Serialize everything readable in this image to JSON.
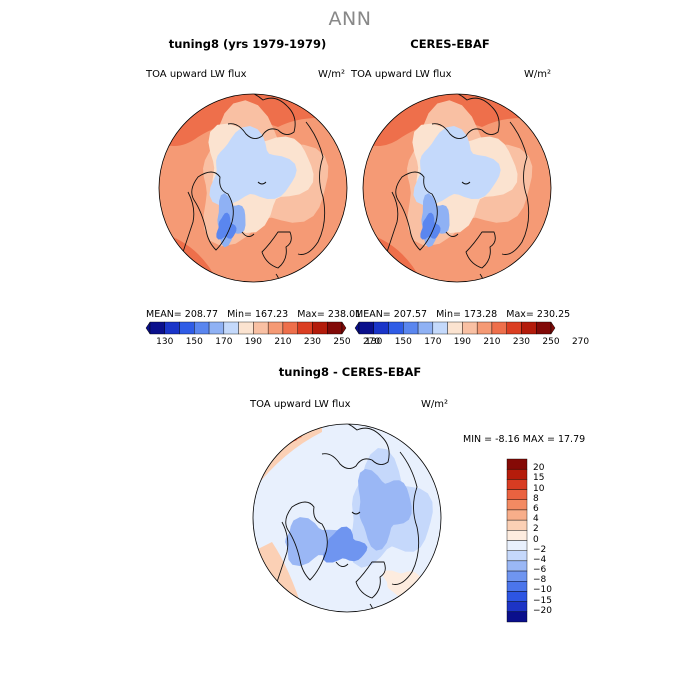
{
  "figure": {
    "title": "ANN"
  },
  "colors": {
    "abs_scale": [
      "#0a0f8c",
      "#1a35c9",
      "#2f5ce6",
      "#5a86ef",
      "#8fb1f4",
      "#c4d9fb",
      "#fbe3d0",
      "#f9c0a3",
      "#f59a75",
      "#ee6f4b",
      "#db3e22",
      "#b31b0b",
      "#820a08"
    ],
    "diff_scale": [
      "#0a0f8c",
      "#1d34c5",
      "#2d55e3",
      "#4b75eb",
      "#6f95f0",
      "#9ab7f5",
      "#c5d8fb",
      "#e8f0fd",
      "#fdecdf",
      "#fbd0b5",
      "#f8ae8a",
      "#f38a62",
      "#ea6240",
      "#d83c22",
      "#b51c0b",
      "#850a06"
    ]
  },
  "top_left": {
    "title": "tuning8 (yrs 1979-1979)",
    "variable": "TOA upward LW flux",
    "units": "W/m²",
    "mean_label": "MEAN=",
    "mean": "208.77",
    "min_label": "Min=",
    "min": "167.23",
    "max_label": "Max=",
    "max": "238.01"
  },
  "top_right": {
    "title": "CERES-EBAF",
    "variable": "TOA upward LW flux",
    "units": "W/m²",
    "mean_label": "MEAN=",
    "mean": "207.57",
    "min_label": "Min=",
    "min": "173.28",
    "max_label": "Max=",
    "max": "230.25"
  },
  "bottom": {
    "title": "tuning8 - CERES-EBAF",
    "variable": "TOA upward LW flux",
    "units": "W/m²",
    "min_label": "MIN =",
    "min": "-8.16",
    "max_label": "MAX =",
    "max": "17.79"
  },
  "chart_data": [
    {
      "type": "heatmap",
      "title": "tuning8 (yrs 1979-1979)",
      "projection": "north polar stereographic",
      "variable": "TOA upward LW flux",
      "units": "W/m²",
      "mean": 208.77,
      "min": 167.23,
      "max": 238.01,
      "colorbar_levels": [
        130,
        140,
        150,
        160,
        170,
        180,
        190,
        200,
        210,
        220,
        230,
        240,
        250,
        260,
        270
      ],
      "colorbar_ticks": [
        "130",
        "150",
        "170",
        "190",
        "210",
        "230",
        "250",
        "270"
      ]
    },
    {
      "type": "heatmap",
      "title": "CERES-EBAF",
      "projection": "north polar stereographic",
      "variable": "TOA upward LW flux",
      "units": "W/m²",
      "mean": 207.57,
      "min": 173.28,
      "max": 230.25,
      "colorbar_levels": [
        130,
        140,
        150,
        160,
        170,
        180,
        190,
        200,
        210,
        220,
        230,
        240,
        250,
        260,
        270
      ],
      "colorbar_ticks": [
        "130",
        "150",
        "170",
        "190",
        "210",
        "230",
        "250",
        "270"
      ]
    },
    {
      "type": "heatmap",
      "title": "tuning8 - CERES-EBAF",
      "projection": "north polar stereographic",
      "variable": "TOA upward LW flux",
      "units": "W/m²",
      "min": -8.16,
      "max": 17.79,
      "colorbar_levels": [
        -20,
        -15,
        -10,
        -8,
        -6,
        -4,
        -2,
        0,
        2,
        4,
        6,
        8,
        10,
        15,
        20
      ],
      "colorbar_labels_top_to_bottom": [
        "20",
        "15",
        "10",
        "8",
        "6",
        "4",
        "2",
        "0",
        "−2",
        "−4",
        "−6",
        "−8",
        "−10",
        "−15",
        "−20"
      ]
    }
  ]
}
